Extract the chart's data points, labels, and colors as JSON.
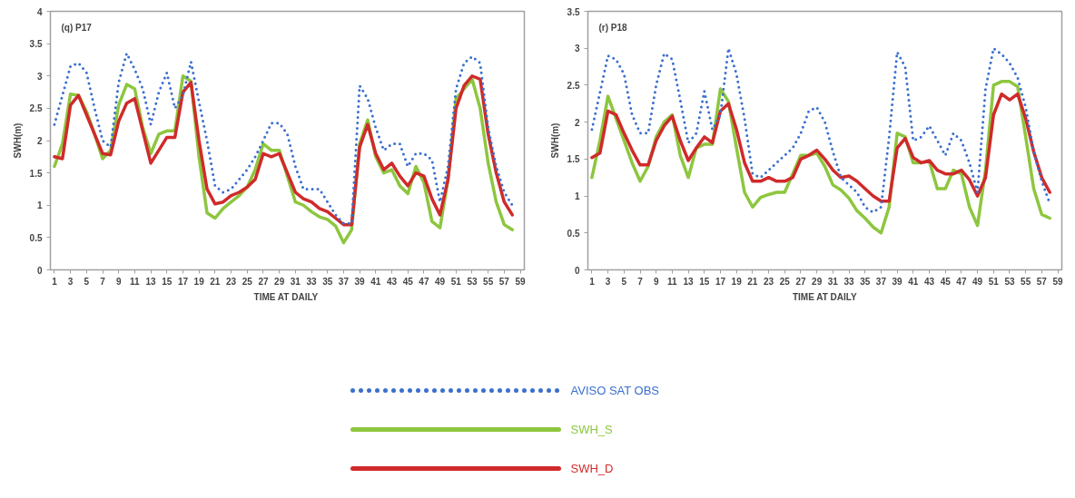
{
  "chart_data": [
    {
      "type": "line",
      "title": "(q) P17",
      "xlabel": "TIME AT  DAILY",
      "ylabel": "SWH(m)",
      "x": [
        1,
        2,
        3,
        4,
        5,
        6,
        7,
        8,
        9,
        10,
        11,
        12,
        13,
        14,
        15,
        16,
        17,
        18,
        19,
        20,
        21,
        22,
        23,
        24,
        25,
        26,
        27,
        28,
        29,
        30,
        31,
        32,
        33,
        34,
        35,
        36,
        37,
        38,
        39,
        40,
        41,
        42,
        43,
        44,
        45,
        46,
        47,
        48,
        49,
        50,
        51,
        52,
        53,
        54,
        55,
        56,
        57,
        58
      ],
      "xlim": [
        0.5,
        59.5
      ],
      "xticks": [
        1,
        3,
        5,
        7,
        9,
        11,
        13,
        15,
        17,
        19,
        21,
        23,
        25,
        27,
        29,
        31,
        33,
        35,
        37,
        39,
        41,
        43,
        45,
        47,
        49,
        51,
        53,
        55,
        57,
        59
      ],
      "ylim": [
        0,
        4
      ],
      "yticks": [
        0,
        0.5,
        1,
        1.5,
        2,
        2.5,
        3,
        3.5,
        4
      ],
      "grid": false,
      "legend": "bottom",
      "series": [
        {
          "name": "AVISO SAT OBS",
          "color": "#3a6fcf",
          "line_style": "dotted",
          "values": [
            2.25,
            2.7,
            3.15,
            3.2,
            3.05,
            2.5,
            2.0,
            1.9,
            2.9,
            3.35,
            3.1,
            2.8,
            2.25,
            2.75,
            3.05,
            2.5,
            2.7,
            3.22,
            2.6,
            2.0,
            1.3,
            1.2,
            1.25,
            1.4,
            1.55,
            1.75,
            2.0,
            2.27,
            2.27,
            2.1,
            1.6,
            1.25,
            1.25,
            1.25,
            1.05,
            0.85,
            0.72,
            0.72,
            2.85,
            2.65,
            2.2,
            1.85,
            1.95,
            1.95,
            1.6,
            1.8,
            1.8,
            1.7,
            1.05,
            1.6,
            2.8,
            3.2,
            3.3,
            3.2,
            2.2,
            1.6,
            1.2,
            1.0
          ]
        },
        {
          "name": "SWH_S",
          "color": "#8dc63f",
          "line_style": "solid",
          "values": [
            1.6,
            1.95,
            2.72,
            2.7,
            2.45,
            2.1,
            1.72,
            1.85,
            2.55,
            2.87,
            2.8,
            2.2,
            1.8,
            2.1,
            2.15,
            2.15,
            3.0,
            2.92,
            1.75,
            0.88,
            0.8,
            0.95,
            1.05,
            1.15,
            1.28,
            1.55,
            1.95,
            1.85,
            1.85,
            1.45,
            1.05,
            1.0,
            0.9,
            0.82,
            0.78,
            0.68,
            0.42,
            0.62,
            1.95,
            2.32,
            1.75,
            1.5,
            1.55,
            1.3,
            1.18,
            1.6,
            1.35,
            0.75,
            0.65,
            1.4,
            2.65,
            2.8,
            2.95,
            2.5,
            1.65,
            1.05,
            0.7,
            0.62
          ]
        },
        {
          "name": "SWH_D",
          "color": "#d02a2a",
          "line_style": "solid",
          "values": [
            1.75,
            1.72,
            2.55,
            2.7,
            2.4,
            2.1,
            1.8,
            1.78,
            2.3,
            2.58,
            2.65,
            2.15,
            1.65,
            1.85,
            2.05,
            2.05,
            2.75,
            2.9,
            2.0,
            1.25,
            1.02,
            1.05,
            1.15,
            1.2,
            1.28,
            1.4,
            1.8,
            1.75,
            1.8,
            1.5,
            1.2,
            1.1,
            1.05,
            0.95,
            0.9,
            0.8,
            0.7,
            0.7,
            1.9,
            2.25,
            1.8,
            1.55,
            1.65,
            1.45,
            1.3,
            1.5,
            1.45,
            1.1,
            0.85,
            1.4,
            2.5,
            2.85,
            3.0,
            2.95,
            2.1,
            1.5,
            1.05,
            0.85
          ]
        }
      ]
    },
    {
      "type": "line",
      "title": "(r) P18",
      "xlabel": "TIME AT DAILY",
      "ylabel": "SWH(m)",
      "x": [
        1,
        2,
        3,
        4,
        5,
        6,
        7,
        8,
        9,
        10,
        11,
        12,
        13,
        14,
        15,
        16,
        17,
        18,
        19,
        20,
        21,
        22,
        23,
        24,
        25,
        26,
        27,
        28,
        29,
        30,
        31,
        32,
        33,
        34,
        35,
        36,
        37,
        38,
        39,
        40,
        41,
        42,
        43,
        44,
        45,
        46,
        47,
        48,
        49,
        50,
        51,
        52,
        53,
        54,
        55,
        56,
        57,
        58
      ],
      "xlim": [
        0.5,
        59.5
      ],
      "xticks": [
        1,
        3,
        5,
        7,
        9,
        11,
        13,
        15,
        17,
        19,
        21,
        23,
        25,
        27,
        29,
        31,
        33,
        35,
        37,
        39,
        41,
        43,
        45,
        47,
        49,
        51,
        53,
        55,
        57,
        59
      ],
      "ylim": [
        0,
        3.5
      ],
      "yticks": [
        0,
        0.5,
        1,
        1.5,
        2,
        2.5,
        3,
        3.5
      ],
      "grid": false,
      "series": [
        {
          "color": "#3a6fcf",
          "line_style": "dotted",
          "values": [
            1.9,
            2.4,
            2.9,
            2.85,
            2.65,
            2.1,
            1.85,
            1.85,
            2.5,
            2.93,
            2.85,
            2.3,
            1.72,
            1.85,
            2.42,
            1.9,
            2.1,
            3.0,
            2.65,
            2.05,
            1.3,
            1.25,
            1.35,
            1.45,
            1.55,
            1.65,
            1.85,
            2.15,
            2.2,
            2.0,
            1.6,
            1.25,
            1.15,
            1.05,
            0.85,
            0.78,
            0.85,
            1.8,
            2.95,
            2.75,
            1.75,
            1.8,
            1.95,
            1.75,
            1.55,
            1.85,
            1.75,
            1.45,
            1.05,
            2.45,
            3.0,
            2.92,
            2.8,
            2.6,
            2.2,
            1.6,
            1.2,
            0.9
          ]
        },
        {
          "color": "#8dc63f",
          "line_style": "solid",
          "values": [
            1.25,
            1.75,
            2.35,
            2.05,
            1.75,
            1.45,
            1.2,
            1.4,
            1.8,
            2.0,
            2.1,
            1.55,
            1.25,
            1.65,
            1.7,
            1.7,
            2.45,
            2.28,
            1.65,
            1.05,
            0.85,
            0.98,
            1.02,
            1.05,
            1.05,
            1.3,
            1.55,
            1.55,
            1.58,
            1.4,
            1.15,
            1.08,
            0.97,
            0.8,
            0.7,
            0.58,
            0.5,
            0.85,
            1.85,
            1.8,
            1.45,
            1.45,
            1.47,
            1.1,
            1.1,
            1.35,
            1.3,
            0.85,
            0.6,
            1.35,
            2.5,
            2.55,
            2.55,
            2.48,
            1.8,
            1.1,
            0.75,
            0.7
          ]
        },
        {
          "color": "#d02a2a",
          "line_style": "solid",
          "values": [
            1.52,
            1.58,
            2.15,
            2.1,
            1.85,
            1.62,
            1.42,
            1.42,
            1.75,
            1.95,
            2.08,
            1.75,
            1.48,
            1.65,
            1.8,
            1.72,
            2.15,
            2.25,
            1.9,
            1.45,
            1.2,
            1.2,
            1.25,
            1.2,
            1.2,
            1.25,
            1.5,
            1.55,
            1.62,
            1.5,
            1.35,
            1.25,
            1.27,
            1.2,
            1.1,
            1.0,
            0.93,
            0.93,
            1.65,
            1.78,
            1.52,
            1.45,
            1.48,
            1.35,
            1.3,
            1.3,
            1.35,
            1.22,
            1.0,
            1.25,
            2.1,
            2.38,
            2.3,
            2.38,
            2.05,
            1.6,
            1.25,
            1.05
          ]
        }
      ]
    }
  ]
}
